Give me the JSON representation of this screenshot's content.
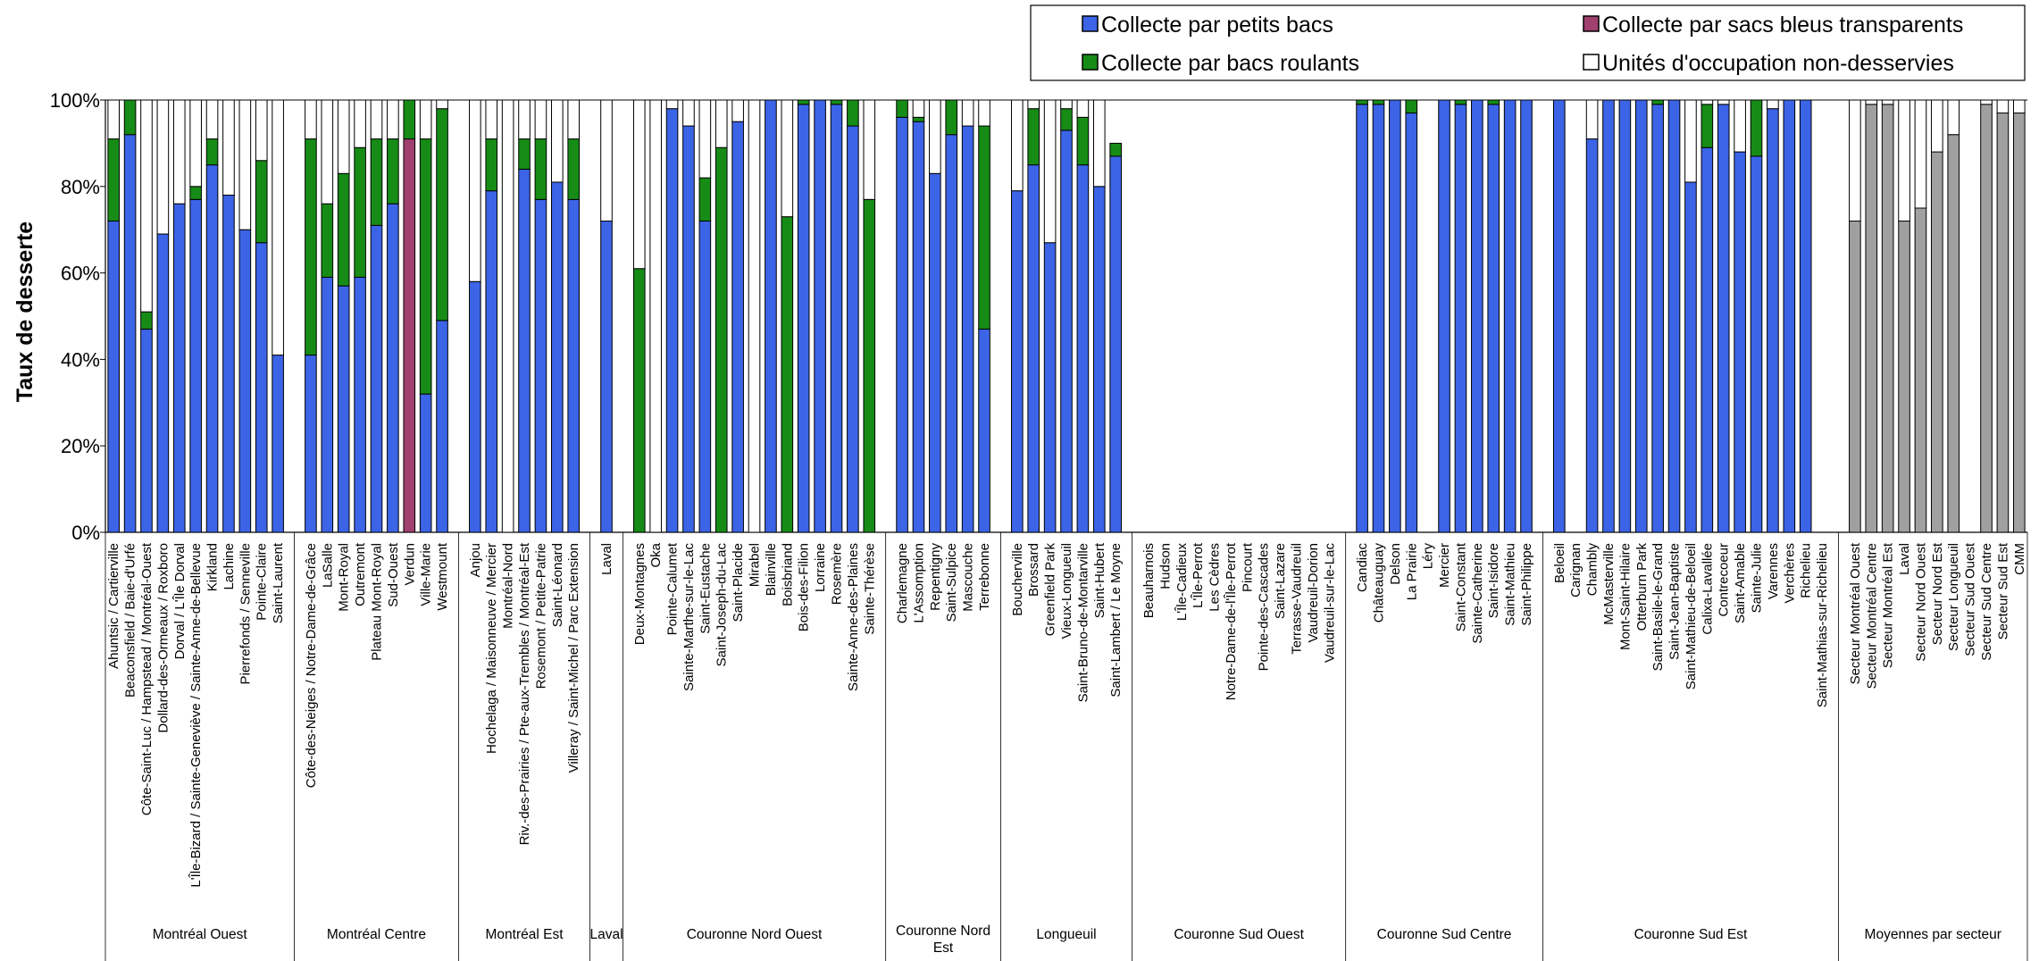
{
  "chart_data": {
    "type": "bar",
    "stacked": true,
    "ylabel": "Taux de desserte",
    "ylim": [
      0,
      100
    ],
    "yticks": [
      "0%",
      "20%",
      "40%",
      "60%",
      "80%",
      "100%"
    ],
    "legend_placement": "top-right",
    "series": [
      {
        "name": "Collecte par petits bacs",
        "color": "#3C64E6"
      },
      {
        "name": "Collecte par sacs bleus transparents",
        "color": "#A0406E"
      },
      {
        "name": "Collecte par bacs roulants",
        "color": "#168C16"
      },
      {
        "name": "Unités d'occupation non-desservies",
        "color": "#FFFFFF"
      }
    ],
    "groups": [
      {
        "name": "Montréal Ouest",
        "bars": [
          {
            "label": "Ahuntsic / Cartierville",
            "values": [
              72,
              0,
              19,
              9
            ]
          },
          {
            "label": "Beaconsfield / Baie-d'Urfé",
            "values": [
              92,
              0,
              8,
              0
            ]
          },
          {
            "label": "Côte-Saint-Luc / Hampstead / Montréal-Ouest",
            "values": [
              47,
              0,
              4,
              49
            ]
          },
          {
            "label": "Dollard-des-Ormeaux / Roxboro",
            "values": [
              69,
              0,
              0,
              31
            ]
          },
          {
            "label": "Dorval / L'Île Dorval",
            "values": [
              76,
              0,
              0,
              24
            ]
          },
          {
            "label": "L'Île-Bizard / Sainte-Geneviève / Sainte-Anne-de-Bellevue",
            "values": [
              77,
              0,
              3,
              20
            ]
          },
          {
            "label": "Kirkland",
            "values": [
              85,
              0,
              6,
              9
            ]
          },
          {
            "label": "Lachine",
            "values": [
              78,
              0,
              0,
              22
            ]
          },
          {
            "label": "Pierrefonds / Senneville",
            "values": [
              70,
              0,
              0,
              30
            ]
          },
          {
            "label": "Pointe-Claire",
            "values": [
              67,
              0,
              19,
              14
            ]
          },
          {
            "label": "Saint-Laurent",
            "values": [
              41,
              0,
              0,
              59
            ]
          }
        ]
      },
      {
        "name": "Montréal Centre",
        "bars": [
          {
            "label": "Côte-des-Neiges / Notre-Dame-de-Grâce",
            "values": [
              41,
              0,
              50,
              9
            ]
          },
          {
            "label": "LaSalle",
            "values": [
              59,
              0,
              17,
              24
            ]
          },
          {
            "label": "Mont-Royal",
            "values": [
              57,
              0,
              26,
              17
            ]
          },
          {
            "label": "Outremont",
            "values": [
              59,
              0,
              30,
              11
            ]
          },
          {
            "label": "Plateau Mont-Royal",
            "values": [
              71,
              0,
              20,
              9
            ]
          },
          {
            "label": "Sud-Ouest",
            "values": [
              76,
              0,
              15,
              9
            ]
          },
          {
            "label": "Verdun",
            "values": [
              0,
              91,
              9,
              0
            ]
          },
          {
            "label": "Ville-Marie",
            "values": [
              32,
              0,
              59,
              9
            ]
          },
          {
            "label": "Westmount",
            "values": [
              49,
              0,
              49,
              2
            ]
          }
        ]
      },
      {
        "name": "Montréal Est",
        "bars": [
          {
            "label": "Anjou",
            "values": [
              58,
              0,
              0,
              42
            ]
          },
          {
            "label": "Hochelaga / Maisonneuve / Mercier",
            "values": [
              79,
              0,
              12,
              9
            ]
          },
          {
            "label": "Montréal-Nord",
            "values": [
              0,
              0,
              0,
              100
            ]
          },
          {
            "label": "Riv.-des-Prairies / Pte-aux-Trembles / Montréal-Est",
            "values": [
              84,
              0,
              7,
              9
            ]
          },
          {
            "label": "Rosemont / Petite-Patrie",
            "values": [
              77,
              0,
              14,
              9
            ]
          },
          {
            "label": "Saint-Léonard",
            "values": [
              81,
              0,
              0,
              19
            ]
          },
          {
            "label": "Villeray / Saint-Michel / Parc Extension",
            "values": [
              77,
              0,
              14,
              9
            ]
          }
        ]
      },
      {
        "name": "Laval",
        "bars": [
          {
            "label": "Laval",
            "values": [
              72,
              0,
              0,
              28
            ]
          }
        ]
      },
      {
        "name": "Couronne Nord Ouest",
        "bars": [
          {
            "label": "Deux-Montagnes",
            "values": [
              0,
              0,
              61,
              39
            ]
          },
          {
            "label": "Oka",
            "values": [
              0,
              0,
              0,
              100
            ]
          },
          {
            "label": "Pointe-Calumet",
            "values": [
              98,
              0,
              0,
              2
            ]
          },
          {
            "label": "Sainte-Marthe-sur-le-Lac",
            "values": [
              94,
              0,
              0,
              6
            ]
          },
          {
            "label": "Saint-Eustache",
            "values": [
              72,
              0,
              10,
              18
            ]
          },
          {
            "label": "Saint-Joseph-du-Lac",
            "values": [
              0,
              0,
              89,
              11
            ]
          },
          {
            "label": "Saint-Placide",
            "values": [
              95,
              0,
              0,
              5
            ]
          },
          {
            "label": "Mirabel",
            "values": [
              0,
              0,
              0,
              100
            ]
          },
          {
            "label": "Blainville",
            "values": [
              100,
              0,
              0,
              0
            ]
          },
          {
            "label": "Boisbriand",
            "values": [
              0,
              0,
              73,
              27
            ]
          },
          {
            "label": "Bois-des-Filion",
            "values": [
              99,
              0,
              1,
              0
            ]
          },
          {
            "label": "Lorraine",
            "values": [
              100,
              0,
              0,
              0
            ]
          },
          {
            "label": "Rosemère",
            "values": [
              99,
              0,
              1,
              0
            ]
          },
          {
            "label": "Sainte-Anne-des-Plaines",
            "values": [
              94,
              0,
              6,
              0
            ]
          },
          {
            "label": "Sainte-Thérèse",
            "values": [
              0,
              0,
              77,
              23
            ]
          }
        ]
      },
      {
        "name": "Couronne Nord Est",
        "bars": [
          {
            "label": "Charlemagne",
            "values": [
              96,
              0,
              4,
              0
            ]
          },
          {
            "label": "L'Assomption",
            "values": [
              95,
              0,
              1,
              4
            ]
          },
          {
            "label": "Repentigny",
            "values": [
              83,
              0,
              0,
              17
            ]
          },
          {
            "label": "Saint-Sulpice",
            "values": [
              92,
              0,
              8,
              0
            ]
          },
          {
            "label": "Mascouche",
            "values": [
              94,
              0,
              0,
              6
            ]
          },
          {
            "label": "Terrebonne",
            "values": [
              47,
              0,
              47,
              6
            ]
          }
        ]
      },
      {
        "name": "Longueuil",
        "bars": [
          {
            "label": "Boucherville",
            "values": [
              79,
              0,
              0,
              21
            ]
          },
          {
            "label": "Brossard",
            "values": [
              85,
              0,
              13,
              2
            ]
          },
          {
            "label": "Greenfield Park",
            "values": [
              67,
              0,
              0,
              33
            ]
          },
          {
            "label": "Vieux-Longueuil",
            "values": [
              93,
              0,
              5,
              2
            ]
          },
          {
            "label": "Saint-Bruno-de-Montarville",
            "values": [
              85,
              0,
              11,
              4
            ]
          },
          {
            "label": "Saint-Hubert",
            "values": [
              80,
              0,
              0,
              20
            ]
          },
          {
            "label": "Saint-Lambert / Le Moyne",
            "values": [
              87,
              0,
              3,
              0
            ]
          }
        ]
      },
      {
        "name": "Couronne Sud Ouest",
        "bars": [
          {
            "label": "Beauharnois",
            "values": [
              0,
              0,
              0,
              0
            ]
          },
          {
            "label": "Hudson",
            "values": [
              0,
              0,
              0,
              0
            ]
          },
          {
            "label": "L'Île-Cadieux",
            "values": [
              0,
              0,
              0,
              0
            ]
          },
          {
            "label": "L'Île-Perrot",
            "values": [
              0,
              0,
              0,
              0
            ]
          },
          {
            "label": "Les Cèdres",
            "values": [
              0,
              0,
              0,
              0
            ]
          },
          {
            "label": "Notre-Dame-de-l'Île-Perrot",
            "values": [
              0,
              0,
              0,
              0
            ]
          },
          {
            "label": "Pincourt",
            "values": [
              0,
              0,
              0,
              0
            ]
          },
          {
            "label": "Pointe-des-Cascades",
            "values": [
              0,
              0,
              0,
              0
            ]
          },
          {
            "label": "Saint-Lazare",
            "values": [
              0,
              0,
              0,
              0
            ]
          },
          {
            "label": "Terrasse-Vaudreuil",
            "values": [
              0,
              0,
              0,
              0
            ]
          },
          {
            "label": "Vaudreuil-Dorion",
            "values": [
              0,
              0,
              0,
              0
            ]
          },
          {
            "label": "Vaudreuil-sur-le-Lac",
            "values": [
              0,
              0,
              0,
              0
            ]
          }
        ]
      },
      {
        "name": "Couronne Sud Centre",
        "bars": [
          {
            "label": "Candiac",
            "values": [
              99,
              0,
              1,
              0
            ]
          },
          {
            "label": "Châteauguay",
            "values": [
              99,
              0,
              1,
              0
            ]
          },
          {
            "label": "Delson",
            "values": [
              100,
              0,
              0,
              0
            ]
          },
          {
            "label": "La Prairie",
            "values": [
              97,
              0,
              3,
              0
            ]
          },
          {
            "label": "Léry",
            "values": [
              0,
              0,
              0,
              0
            ]
          },
          {
            "label": "Mercier",
            "values": [
              100,
              0,
              0,
              0
            ]
          },
          {
            "label": "Saint-Constant",
            "values": [
              99,
              0,
              1,
              0
            ]
          },
          {
            "label": "Sainte-Catherine",
            "values": [
              100,
              0,
              0,
              0
            ]
          },
          {
            "label": "Saint-Isidore",
            "values": [
              99,
              0,
              1,
              0
            ]
          },
          {
            "label": "Saint-Mathieu",
            "values": [
              100,
              0,
              0,
              0
            ]
          },
          {
            "label": "Saint-Philippe",
            "values": [
              100,
              0,
              0,
              0
            ]
          }
        ]
      },
      {
        "name": "Couronne Sud Est",
        "bars": [
          {
            "label": "Beloeil",
            "values": [
              100,
              0,
              0,
              0
            ]
          },
          {
            "label": "Carignan",
            "values": [
              0,
              0,
              0,
              0
            ]
          },
          {
            "label": "Chambly",
            "values": [
              91,
              0,
              0,
              9
            ]
          },
          {
            "label": "McMasterville",
            "values": [
              100,
              0,
              0,
              0
            ]
          },
          {
            "label": "Mont-Saint-Hilaire",
            "values": [
              100,
              0,
              0,
              0
            ]
          },
          {
            "label": "Otterburn Park",
            "values": [
              100,
              0,
              0,
              0
            ]
          },
          {
            "label": "Saint-Basile-le-Grand",
            "values": [
              99,
              0,
              1,
              0
            ]
          },
          {
            "label": "Saint-Jean-Baptiste",
            "values": [
              100,
              0,
              0,
              0
            ]
          },
          {
            "label": "Saint-Mathieu-de-Beloeil",
            "values": [
              81,
              0,
              0,
              19
            ]
          },
          {
            "label": "Calixa-Lavallée",
            "values": [
              89,
              0,
              10,
              1
            ]
          },
          {
            "label": "Contrecoeur",
            "values": [
              99,
              0,
              0,
              1
            ]
          },
          {
            "label": "Saint-Amable",
            "values": [
              88,
              0,
              0,
              12
            ]
          },
          {
            "label": "Sainte-Julie",
            "values": [
              87,
              0,
              13,
              0
            ]
          },
          {
            "label": "Varennes",
            "values": [
              98,
              0,
              0,
              2
            ]
          },
          {
            "label": "Verchères",
            "values": [
              100,
              0,
              0,
              0
            ]
          },
          {
            "label": "Richelieu",
            "values": [
              100,
              0,
              0,
              0
            ]
          },
          {
            "label": "Saint-Mathias-sur-Richelieu",
            "values": [
              0,
              0,
              0,
              0
            ]
          }
        ]
      },
      {
        "name": "Moyennes par secteur",
        "average": true,
        "bars": [
          {
            "label": "Secteur Montréal Ouest",
            "values": [
              72,
              0,
              0,
              28
            ]
          },
          {
            "label": "Secteur Montréal Centre",
            "values": [
              99,
              0,
              0,
              1
            ]
          },
          {
            "label": "Secteur Montréal Est",
            "values": [
              99,
              0,
              0,
              1
            ]
          },
          {
            "label": "Laval",
            "values": [
              72,
              0,
              0,
              28
            ]
          },
          {
            "label": "Secteur Nord Ouest",
            "values": [
              75,
              0,
              0,
              25
            ]
          },
          {
            "label": "Secteur Nord Est",
            "values": [
              88,
              0,
              0,
              12
            ]
          },
          {
            "label": "Secteur Longueuil",
            "values": [
              92,
              0,
              0,
              8
            ]
          },
          {
            "label": "Secteur Sud Ouest",
            "values": [
              0,
              0,
              0,
              0
            ]
          },
          {
            "label": "Secteur Sud Centre",
            "values": [
              99,
              0,
              0,
              1
            ]
          },
          {
            "label": "Secteur Sud Est",
            "values": [
              97,
              0,
              0,
              3
            ]
          },
          {
            "label": "CMM",
            "values": [
              97,
              0,
              0,
              3
            ]
          }
        ]
      }
    ],
    "average_color": "#A0A0A0"
  }
}
